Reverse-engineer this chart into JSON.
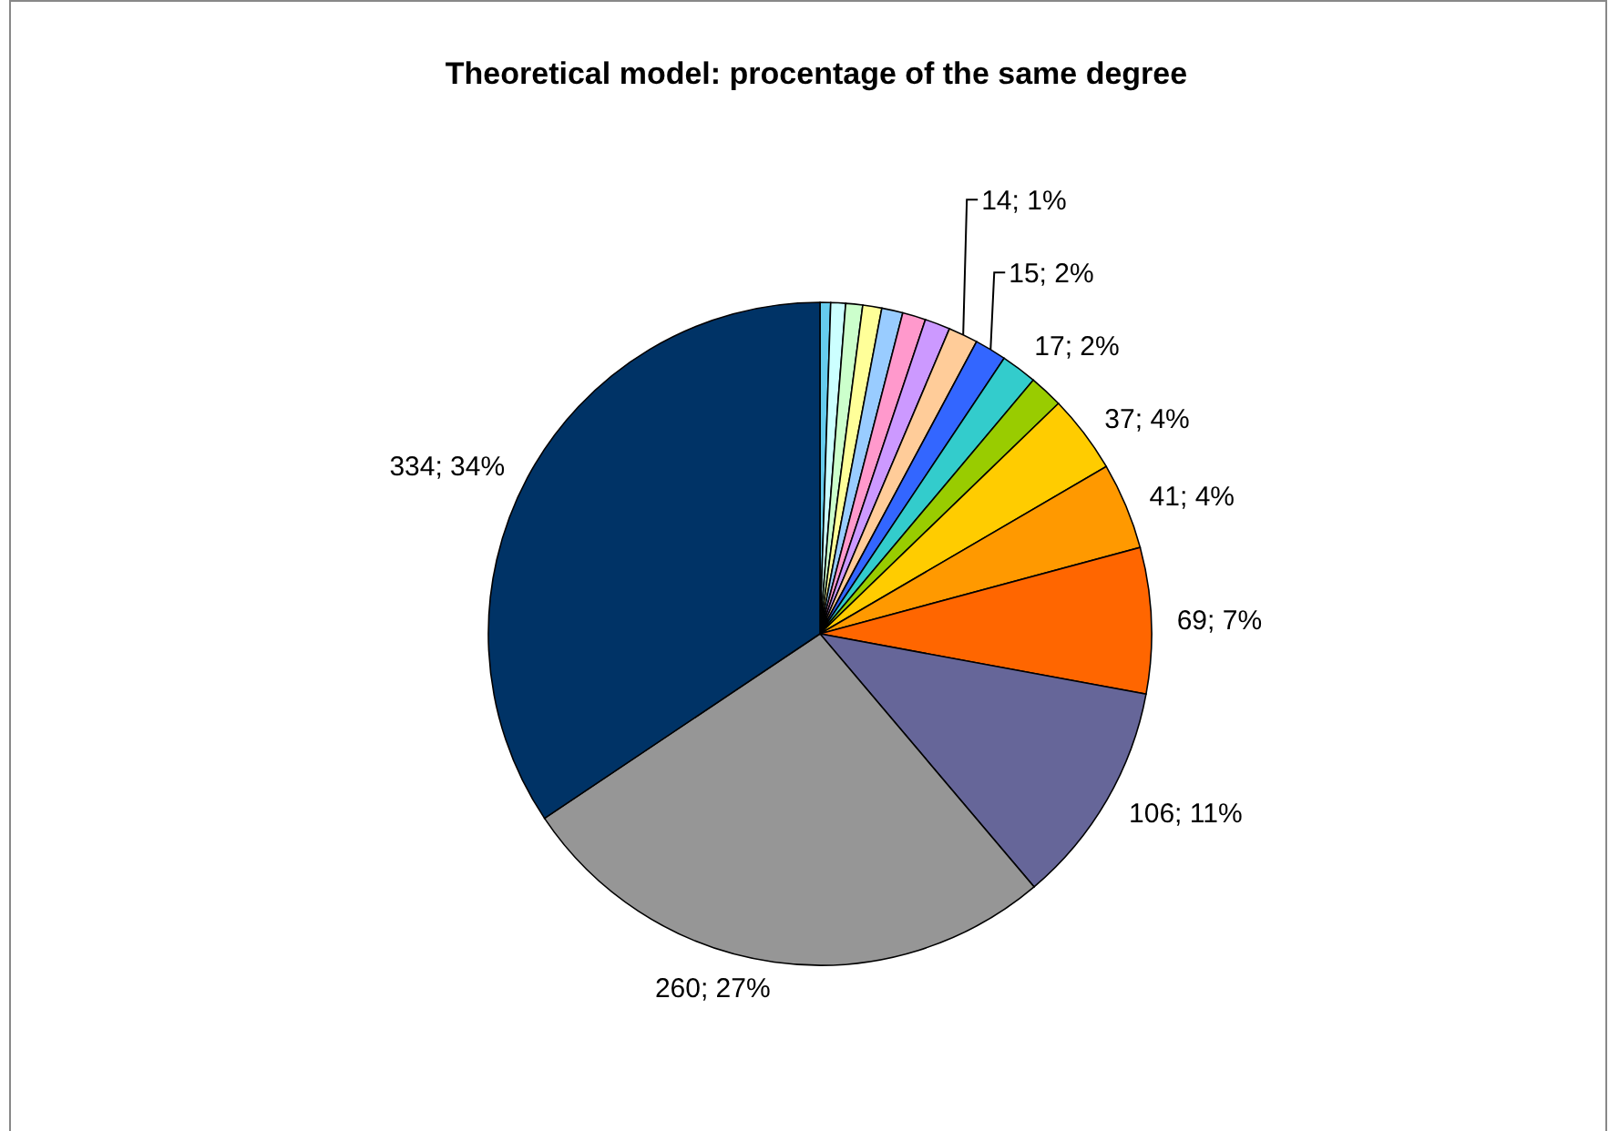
{
  "chart_data": {
    "type": "pie",
    "title": "Theoretical model: procentage of the same degree",
    "categories": [
      null,
      null,
      null,
      null,
      null,
      null,
      null,
      null,
      null,
      null,
      null,
      null,
      null,
      null,
      null,
      null,
      null
    ],
    "values": [
      5,
      7,
      8,
      9,
      10,
      11,
      12,
      14,
      15,
      17,
      16,
      37,
      41,
      69,
      106,
      260,
      334
    ],
    "colors": [
      "#66ccee",
      "#ccffff",
      "#ccffcc",
      "#ffff99",
      "#99ccff",
      "#ff99cc",
      "#cc99ff",
      "#ffcc99",
      "#3366ff",
      "#33cccc",
      "#99cc00",
      "#ffcc00",
      "#ff9900",
      "#ff6600",
      "#666699",
      "#969696",
      "#003366"
    ],
    "value_labels": [
      null,
      null,
      null,
      null,
      null,
      null,
      null,
      "14; 1%",
      "15; 2%",
      "17; 2%",
      null,
      "37; 4%",
      "41; 4%",
      "69; 7%",
      "106; 11%",
      "260; 27%",
      "334; 34%"
    ]
  }
}
